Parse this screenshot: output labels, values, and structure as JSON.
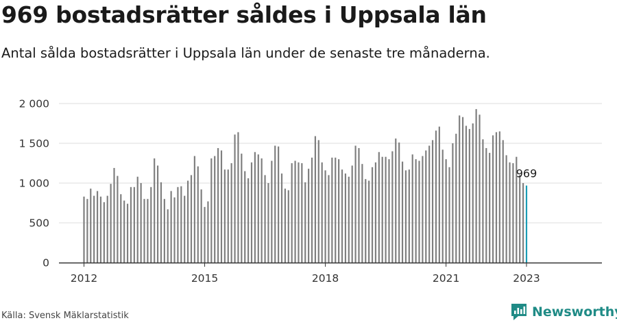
{
  "header": {
    "title": "969 bostadsrätter såldes i Uppsala län",
    "subtitle": "Antal sålda bostadsrätter i Uppsala län under de senaste tre månaderna."
  },
  "footer": {
    "source": "Källa: Svensk Mäklarstatistik",
    "brand": "Newsworthy"
  },
  "colors": {
    "bar": "#7f7f7f",
    "highlight": "#1a9db5",
    "grid": "#dddddd",
    "axis": "#333333",
    "brand": "#1f8b86"
  },
  "icons": {
    "brand_logo": "newsworthy-logo-icon"
  },
  "chart_data": {
    "type": "bar",
    "start": "2012-01",
    "y_ticks": [
      0,
      500,
      1000,
      1500,
      2000
    ],
    "y_tick_labels": [
      "0",
      "500",
      "1 000",
      "1 500",
      "2 000"
    ],
    "ylim": [
      0,
      2000
    ],
    "x_tick_labels": [
      "2012",
      "2015",
      "2018",
      "2021",
      "2023"
    ],
    "x_tick_months": [
      "2012-01",
      "2015-01",
      "2018-01",
      "2021-01",
      "2023-01"
    ],
    "highlight_label": "969",
    "grid": true,
    "values": [
      830,
      800,
      930,
      840,
      900,
      830,
      760,
      840,
      990,
      1190,
      1090,
      860,
      780,
      740,
      950,
      950,
      1080,
      1000,
      800,
      800,
      950,
      1310,
      1220,
      1010,
      800,
      670,
      900,
      820,
      950,
      960,
      840,
      1030,
      1100,
      1340,
      1210,
      920,
      700,
      770,
      1310,
      1340,
      1440,
      1410,
      1170,
      1170,
      1250,
      1610,
      1640,
      1370,
      1150,
      1060,
      1260,
      1390,
      1360,
      1310,
      1100,
      1000,
      1280,
      1470,
      1460,
      1120,
      930,
      910,
      1250,
      1280,
      1260,
      1250,
      1010,
      1180,
      1320,
      1590,
      1540,
      1260,
      1160,
      1100,
      1320,
      1320,
      1300,
      1170,
      1120,
      1080,
      1220,
      1470,
      1440,
      1240,
      1050,
      1030,
      1200,
      1260,
      1390,
      1330,
      1330,
      1300,
      1400,
      1560,
      1510,
      1270,
      1160,
      1170,
      1360,
      1300,
      1280,
      1340,
      1410,
      1470,
      1540,
      1660,
      1710,
      1420,
      1300,
      1200,
      1500,
      1620,
      1850,
      1830,
      1720,
      1680,
      1750,
      1930,
      1860,
      1550,
      1440,
      1380,
      1600,
      1640,
      1650,
      1540,
      1350,
      1260,
      1250,
      1330,
      1100,
      1000,
      969
    ]
  }
}
